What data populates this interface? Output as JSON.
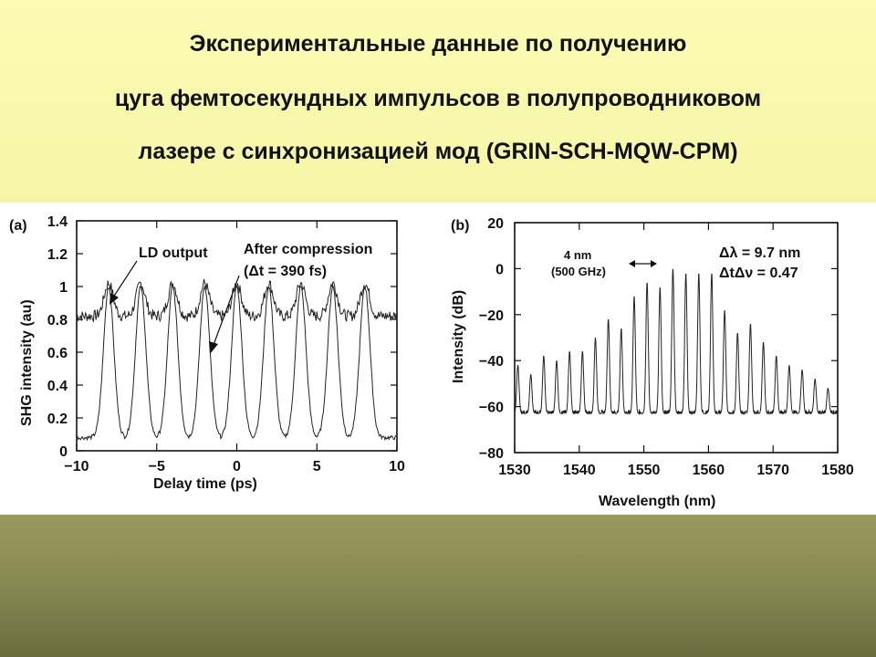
{
  "slide": {
    "title_lines": [
      "Экспериментальные данные по получению",
      "цуга фемтосекундных импульсов в полупроводниковом",
      "лазере с синхронизацией мод (GRIN-SCH-MQW-CPM)"
    ],
    "colors": {
      "title_band": "#f8f8ad",
      "bottom_band": "#858551",
      "figure_bg": "#ffffff"
    }
  },
  "chart_data": [
    {
      "type": "line",
      "panel_label": "(a)",
      "xlabel": "Delay time (ps)",
      "ylabel": "SHG intensity (au)",
      "xlim": [
        -10,
        10
      ],
      "ylim": [
        0,
        1.4
      ],
      "xticks": [
        "−10",
        "−5",
        "0",
        "5",
        "10"
      ],
      "yticks": [
        "0",
        "0.2",
        "0.4",
        "0.6",
        "0.8",
        "1",
        "1.2",
        "1.4"
      ],
      "series": [
        {
          "name": "LD output",
          "baseline": 0.82,
          "peak": 1.02,
          "peak_positions": [
            -8,
            -6,
            -4,
            -2,
            0,
            2,
            4,
            6,
            8
          ]
        },
        {
          "name": "After compression",
          "baseline": 0.08,
          "peak": 1.0,
          "peak_positions": [
            -8,
            -6,
            -4,
            -2,
            0,
            2,
            4,
            6,
            8
          ]
        }
      ],
      "annotations": [
        "LD output",
        "After compression",
        "(Δt = 390 fs)"
      ]
    },
    {
      "type": "line",
      "panel_label": "(b)",
      "xlabel": "Wavelength (nm)",
      "ylabel": "Intensity (dB)",
      "xlim": [
        1530,
        1580
      ],
      "ylim": [
        -80,
        20
      ],
      "xticks": [
        "1530",
        "1540",
        "1550",
        "1560",
        "1570",
        "1580"
      ],
      "yticks": [
        "20",
        "0",
        "−20",
        "−40",
        "−60",
        "−80"
      ],
      "series": [
        {
          "name": "",
          "baseline": -63,
          "peaks": [
            [
              1530.5,
              -42
            ],
            [
              1532.5,
              -46
            ],
            [
              1534.5,
              -38
            ],
            [
              1536.5,
              -40
            ],
            [
              1538.5,
              -36
            ],
            [
              1540.5,
              -36
            ],
            [
              1542.5,
              -30
            ],
            [
              1544.5,
              -22
            ],
            [
              1546.5,
              -26
            ],
            [
              1548.5,
              -12
            ],
            [
              1550.5,
              -6
            ],
            [
              1552.5,
              -8
            ],
            [
              1554.5,
              0
            ],
            [
              1556.5,
              -2
            ],
            [
              1558.5,
              -2
            ],
            [
              1560.5,
              -2
            ],
            [
              1562.5,
              -18
            ],
            [
              1564.5,
              -28
            ],
            [
              1566.5,
              -24
            ],
            [
              1568.5,
              -32
            ],
            [
              1570.5,
              -38
            ],
            [
              1572.5,
              -42
            ],
            [
              1574.5,
              -44
            ],
            [
              1576.5,
              -48
            ],
            [
              1578.5,
              -52
            ]
          ]
        }
      ],
      "annotations": [
        "4 nm",
        "(500 GHz)",
        "Δλ = 9.7 nm",
        "ΔtΔν = 0.47"
      ]
    }
  ]
}
